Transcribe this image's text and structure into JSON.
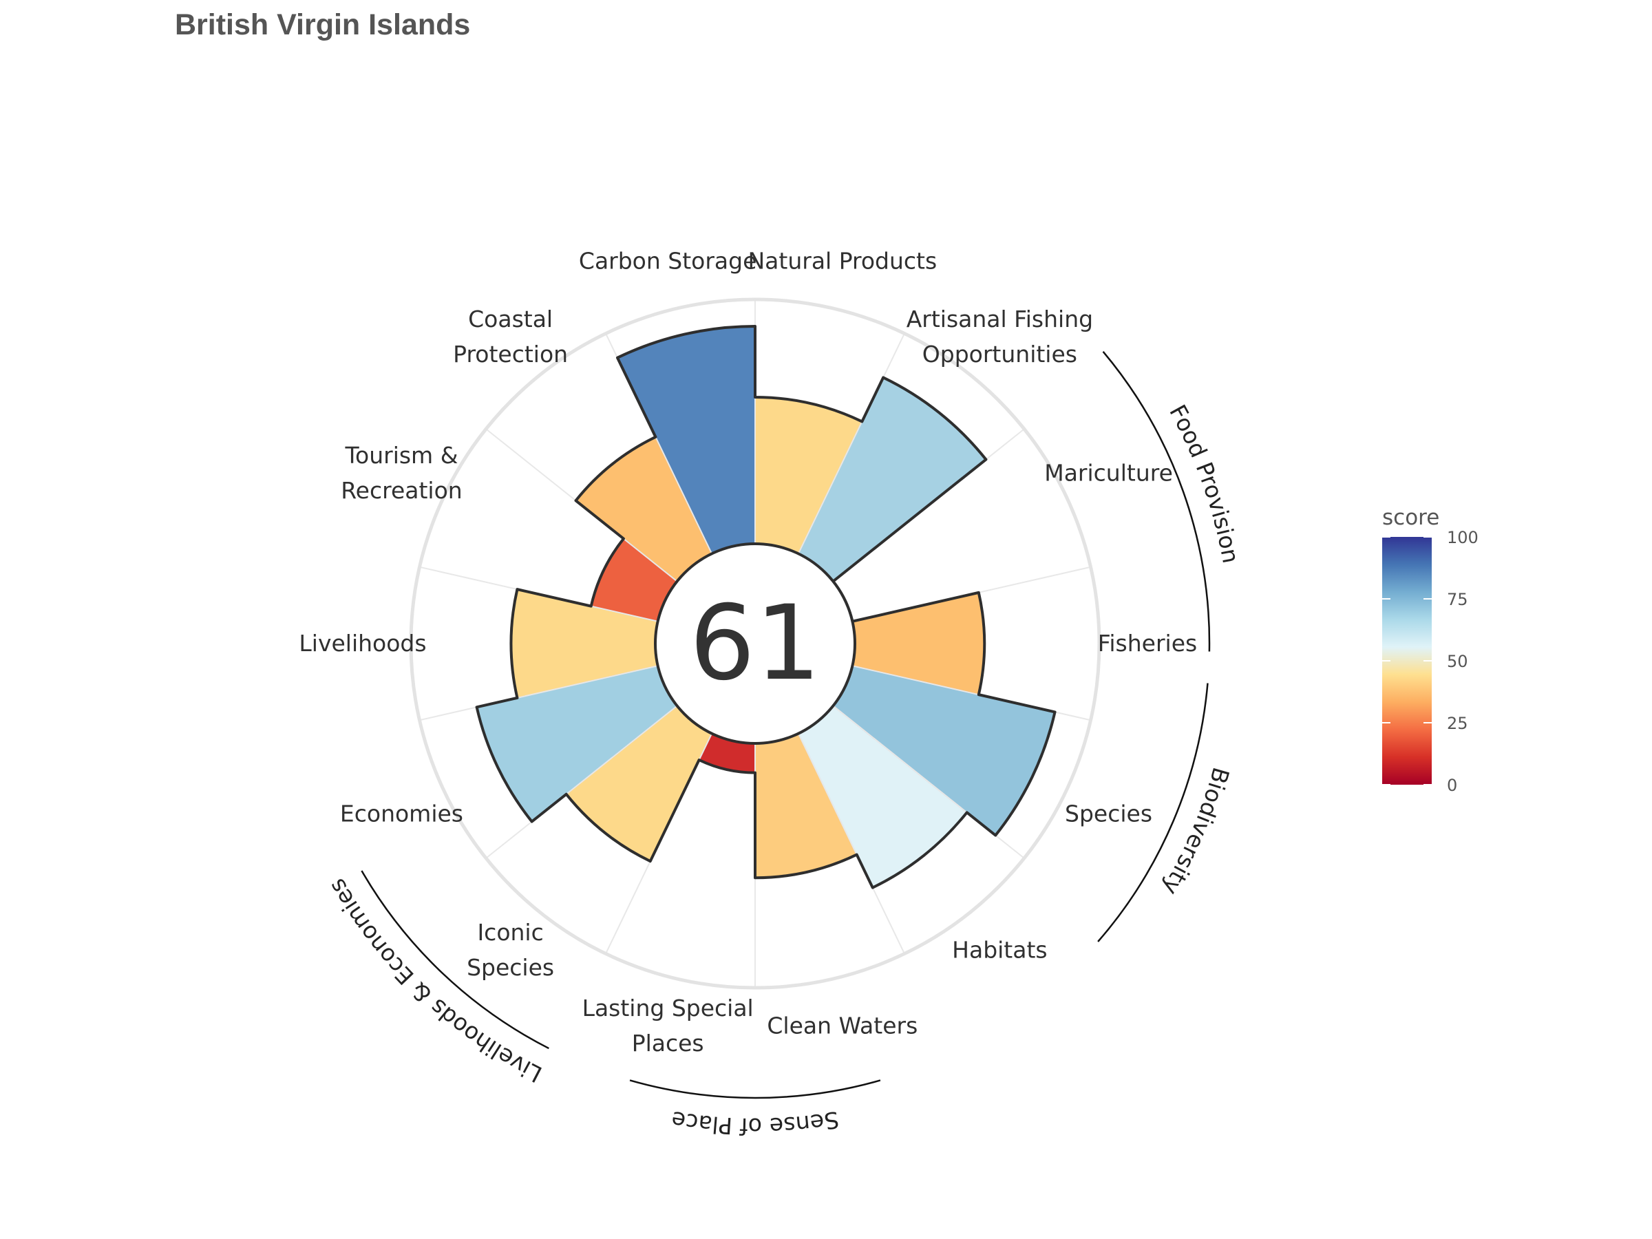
{
  "title": "British Virgin Islands",
  "chart_data": {
    "type": "flower",
    "title": "British Virgin Islands",
    "center_score": 61,
    "ylim": [
      0,
      100
    ],
    "petals": [
      {
        "label": "Fisheries",
        "value": 53,
        "color": "#fdbf6f"
      },
      {
        "label": "Mariculture",
        "value": 0,
        "color": "#ffffff"
      },
      {
        "label": "Artisanal Fishing\nOpportunities",
        "value": 80,
        "color": "#a6d1e3"
      },
      {
        "label": "Natural Products",
        "value": 60,
        "color": "#fdd98a"
      },
      {
        "label": "Carbon Storage",
        "value": 89,
        "color": "#5384bb"
      },
      {
        "label": "Coastal\nProtection",
        "value": 53,
        "color": "#fdbf6f"
      },
      {
        "label": "Tourism &\nRecreation",
        "value": 28,
        "color": "#ed6140"
      },
      {
        "label": "Livelihoods",
        "value": 59,
        "color": "#fdd98a"
      },
      {
        "label": "Economies",
        "value": 76,
        "color": "#a1cfe2"
      },
      {
        "label": "Iconic\nSpecies",
        "value": 58,
        "color": "#fdd98a"
      },
      {
        "label": "Lasting Special\nPlaces",
        "value": 12,
        "color": "#d02c2c"
      },
      {
        "label": "Clean Waters",
        "value": 55,
        "color": "#fdcc7e"
      },
      {
        "label": "Habitats",
        "value": 70,
        "color": "#e0f2f7"
      },
      {
        "label": "Species",
        "value": 85,
        "color": "#93c4dc"
      }
    ],
    "groups": [
      {
        "label": "Food Provision"
      },
      {
        "label": "Biodiversity"
      },
      {
        "label": "Sense of Place"
      },
      {
        "label": "Livelihoods & Economies"
      }
    ],
    "legend": {
      "title": "score",
      "ticks": [
        "0",
        "25",
        "50",
        "75",
        "100"
      ],
      "colors": [
        "#a50026",
        "#d73027",
        "#f46d43",
        "#fdae61",
        "#fee090",
        "#e0f3f8",
        "#abd9e9",
        "#74add1",
        "#4575b4",
        "#313695"
      ]
    }
  }
}
